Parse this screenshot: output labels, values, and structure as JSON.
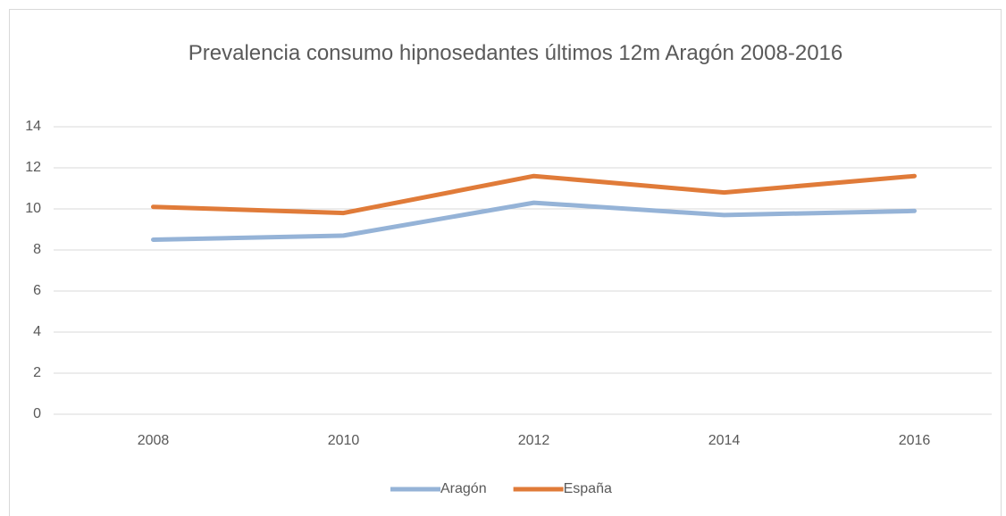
{
  "chart_data": {
    "type": "line",
    "title": "Prevalencia consumo hipnosedantes últimos 12m Aragón 2008-2016",
    "categories": [
      "2008",
      "2010",
      "2012",
      "2014",
      "2016"
    ],
    "series": [
      {
        "name": "Aragón",
        "color": "#95b3d7",
        "values": [
          8.5,
          8.7,
          10.3,
          9.7,
          9.9
        ]
      },
      {
        "name": "España",
        "color": "#e07b39",
        "values": [
          10.1,
          9.8,
          11.6,
          10.8,
          11.6
        ]
      }
    ],
    "ylim": [
      0,
      14
    ],
    "yticks": [
      0,
      2,
      4,
      6,
      8,
      10,
      12,
      14
    ],
    "grid": true,
    "legend": "bottom"
  }
}
